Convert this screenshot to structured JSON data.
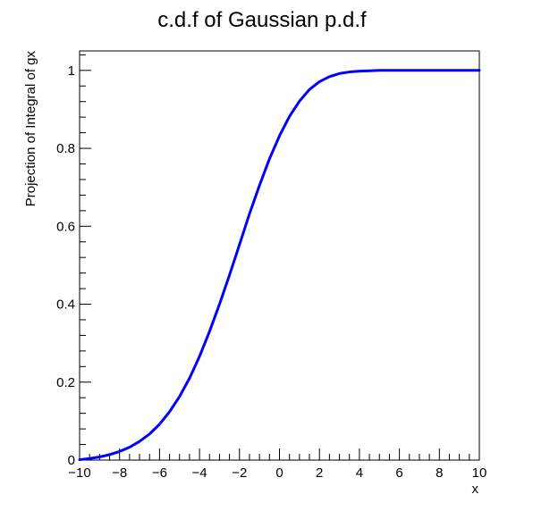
{
  "chart_data": {
    "type": "line",
    "title": "c.d.f of Gaussian p.d.f",
    "xlabel": "x",
    "ylabel": "Projection of Integral of gx",
    "xlim": [
      -10,
      10
    ],
    "ylim": [
      0,
      1.05
    ],
    "x_ticks": [
      -10,
      -8,
      -6,
      -4,
      -2,
      0,
      2,
      4,
      6,
      8,
      10
    ],
    "x_tick_labels": [
      "−10",
      "−8",
      "−6",
      "−4",
      "−2",
      "0",
      "2",
      "4",
      "6",
      "8",
      "10"
    ],
    "y_ticks": [
      0,
      0.2,
      0.4,
      0.6,
      0.8,
      1
    ],
    "y_tick_labels": [
      "0",
      "0.2",
      "0.4",
      "0.6",
      "0.8",
      "1"
    ],
    "grid": false,
    "legend": "none",
    "series": [
      {
        "color": "#0000ff",
        "x": [
          -10,
          -9.5,
          -9,
          -8.5,
          -8,
          -7.5,
          -7,
          -6.5,
          -6,
          -5.5,
          -5,
          -4.5,
          -4,
          -3.5,
          -3,
          -2.5,
          -2,
          -1.5,
          -1,
          -0.5,
          0,
          0.5,
          1,
          1.5,
          2,
          2.5,
          3,
          3.5,
          4,
          4.5,
          5,
          5.5,
          6,
          6.5,
          7,
          7.5,
          8,
          8.5,
          9,
          9.5,
          10
        ],
        "y": [
          0.001,
          0.004,
          0.008,
          0.014,
          0.022,
          0.033,
          0.048,
          0.067,
          0.092,
          0.124,
          0.163,
          0.21,
          0.266,
          0.33,
          0.4,
          0.475,
          0.553,
          0.632,
          0.705,
          0.773,
          0.832,
          0.882,
          0.921,
          0.951,
          0.971,
          0.984,
          0.992,
          0.996,
          0.998,
          0.999,
          1.0,
          1.0,
          1.0,
          1.0,
          1.0,
          1.0,
          1.0,
          1.0,
          1.0,
          1.0,
          1.0
        ]
      }
    ]
  }
}
